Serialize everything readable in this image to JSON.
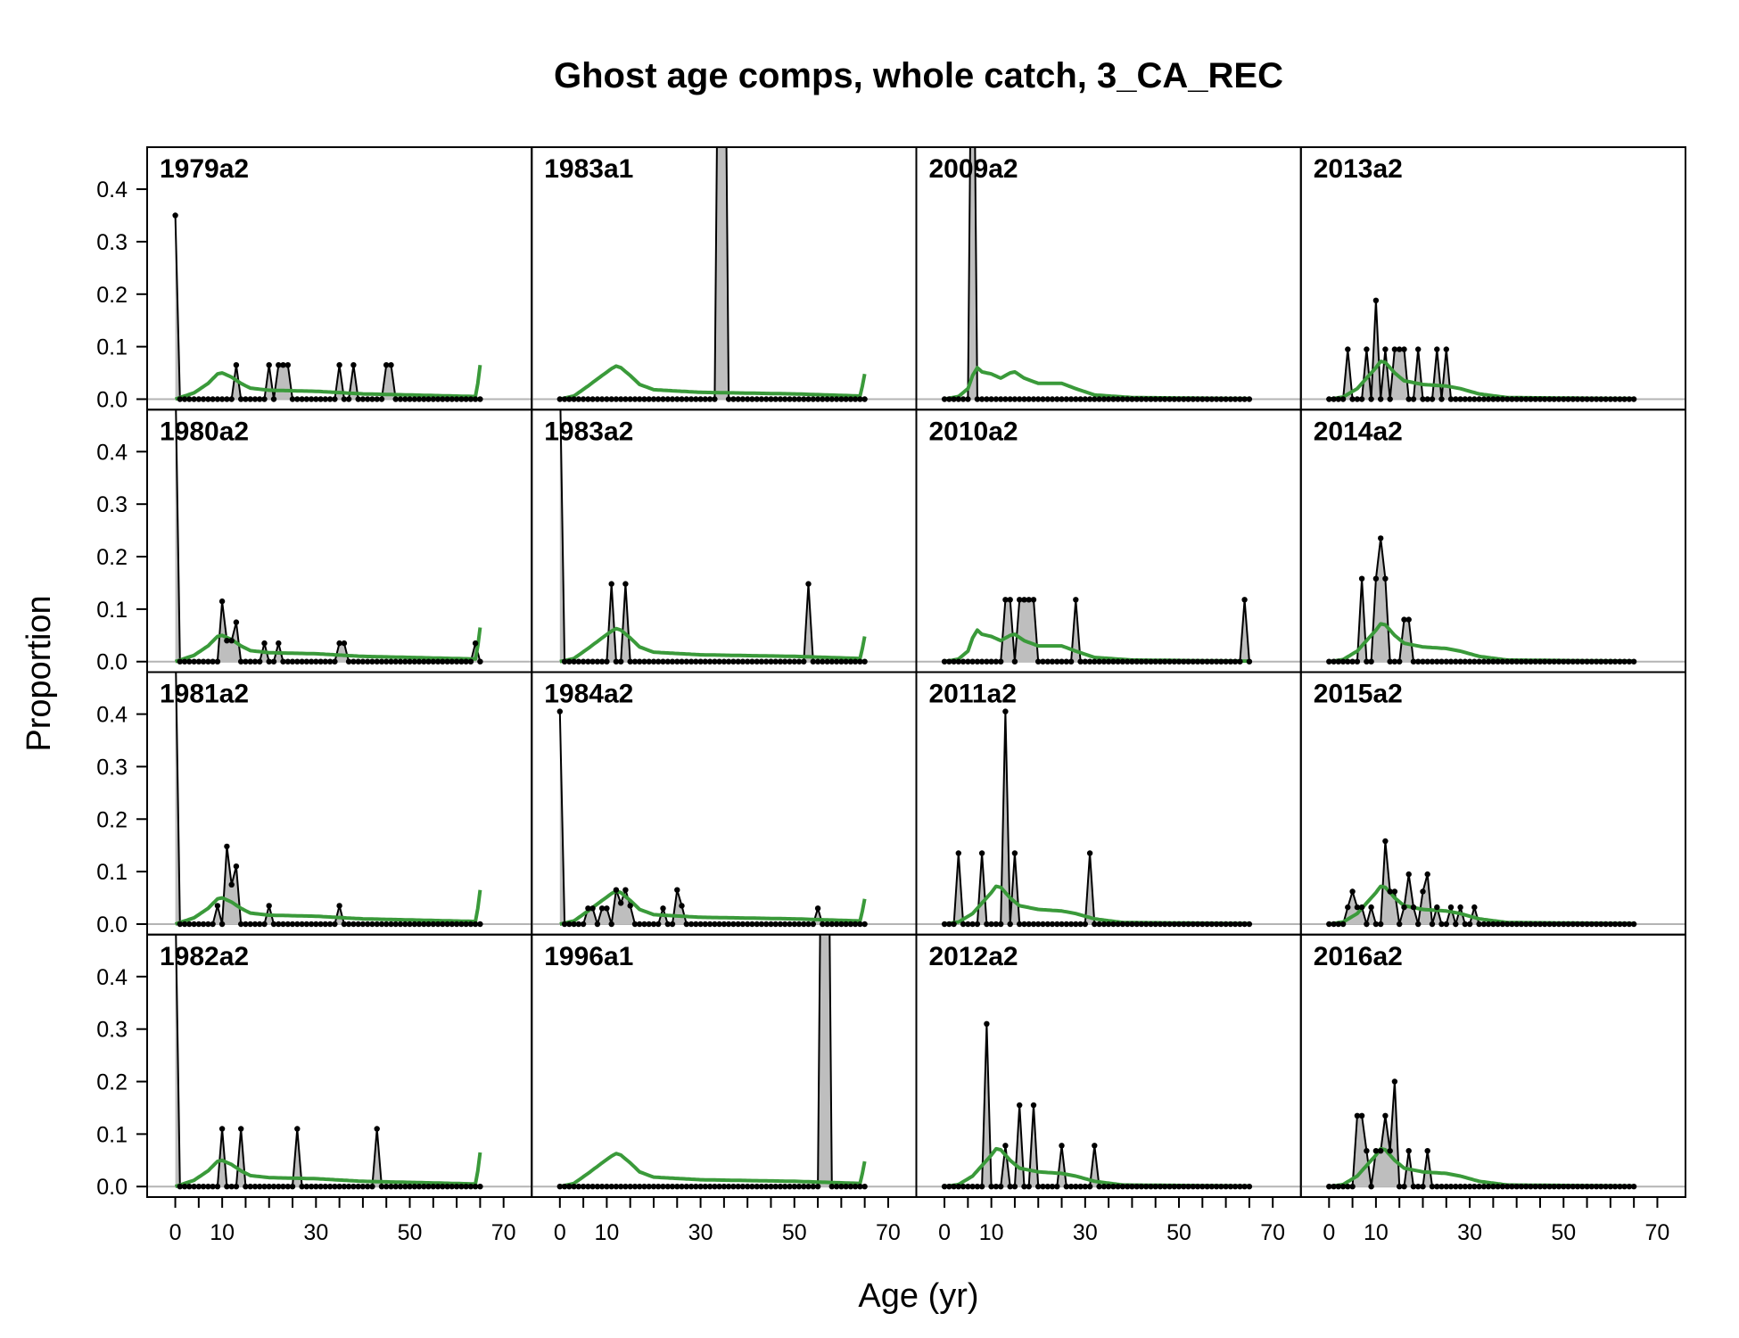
{
  "chart_data": {
    "type": "area",
    "title": "Ghost age comps, whole catch, 3_CA_REC",
    "xlabel": "Age (yr)",
    "ylabel": "Proportion",
    "xlim": [
      -6,
      76
    ],
    "ylim": [
      -0.02,
      0.48
    ],
    "xticks": [
      0,
      10,
      30,
      50,
      70
    ],
    "xticks_minor_step": 5,
    "yticks": [
      0.0,
      0.1,
      0.2,
      0.3,
      0.4
    ],
    "ytick_labels": [
      "0.0",
      "0.1",
      "0.2",
      "0.3",
      "0.4"
    ],
    "xtick_labels": [
      "0",
      "10",
      "30",
      "50",
      "70"
    ],
    "max_age": 65,
    "colors": {
      "observed_fill": "#bebebe",
      "observed_line": "#000000",
      "expected_line": "#3a9a3a",
      "zero_line": "#b4b4b4"
    },
    "layout": {
      "rows": 4,
      "cols": 4,
      "order": "column-major"
    },
    "expected_templates": {
      "A": [
        [
          0,
          0
        ],
        [
          4,
          0.012
        ],
        [
          7,
          0.03
        ],
        [
          9,
          0.048
        ],
        [
          10,
          0.05
        ],
        [
          12,
          0.042
        ],
        [
          14,
          0.03
        ],
        [
          16,
          0.021
        ],
        [
          20,
          0.017
        ],
        [
          30,
          0.015
        ],
        [
          40,
          0.01
        ],
        [
          50,
          0.008
        ],
        [
          64,
          0.005
        ],
        [
          64.5,
          0.03
        ],
        [
          65,
          0.065
        ]
      ],
      "B": [
        [
          0,
          0
        ],
        [
          3,
          0.006
        ],
        [
          6,
          0.025
        ],
        [
          9,
          0.045
        ],
        [
          11,
          0.058
        ],
        [
          12,
          0.063
        ],
        [
          13,
          0.06
        ],
        [
          15,
          0.045
        ],
        [
          17,
          0.028
        ],
        [
          20,
          0.018
        ],
        [
          30,
          0.013
        ],
        [
          50,
          0.01
        ],
        [
          64,
          0.006
        ],
        [
          64.5,
          0.025
        ],
        [
          65,
          0.048
        ]
      ],
      "C": [
        [
          0,
          0
        ],
        [
          3,
          0.005
        ],
        [
          5,
          0.02
        ],
        [
          6,
          0.045
        ],
        [
          7,
          0.06
        ],
        [
          8,
          0.052
        ],
        [
          10,
          0.048
        ],
        [
          12,
          0.04
        ],
        [
          14,
          0.05
        ],
        [
          15,
          0.052
        ],
        [
          17,
          0.04
        ],
        [
          20,
          0.03
        ],
        [
          25,
          0.03
        ],
        [
          28,
          0.02
        ],
        [
          32,
          0.008
        ],
        [
          40,
          0.003
        ],
        [
          65,
          0.001
        ]
      ],
      "D": [
        [
          0,
          0
        ],
        [
          3,
          0.004
        ],
        [
          6,
          0.02
        ],
        [
          8,
          0.04
        ],
        [
          10,
          0.06
        ],
        [
          11,
          0.072
        ],
        [
          12,
          0.07
        ],
        [
          14,
          0.05
        ],
        [
          16,
          0.035
        ],
        [
          20,
          0.028
        ],
        [
          25,
          0.025
        ],
        [
          28,
          0.02
        ],
        [
          32,
          0.01
        ],
        [
          38,
          0.003
        ],
        [
          65,
          0.001
        ]
      ]
    },
    "panels": [
      {
        "label": "1979a2",
        "expected": "A",
        "obs": [
          [
            0,
            0.35
          ],
          [
            13,
            0.065
          ],
          [
            20,
            0.065
          ],
          [
            22,
            0.065
          ],
          [
            23,
            0.065
          ],
          [
            24,
            0.065
          ],
          [
            35,
            0.065
          ],
          [
            38,
            0.065
          ],
          [
            45,
            0.065
          ],
          [
            46,
            0.065
          ]
        ]
      },
      {
        "label": "1980a2",
        "expected": "A",
        "obs": [
          [
            0,
            0.55
          ],
          [
            10,
            0.115
          ],
          [
            11,
            0.04
          ],
          [
            12,
            0.04
          ],
          [
            13,
            0.075
          ],
          [
            19,
            0.035
          ],
          [
            22,
            0.035
          ],
          [
            35,
            0.035
          ],
          [
            36,
            0.035
          ],
          [
            64,
            0.035
          ]
        ]
      },
      {
        "label": "1981a2",
        "expected": "A",
        "obs": [
          [
            0,
            0.55
          ],
          [
            9,
            0.035
          ],
          [
            11,
            0.148
          ],
          [
            12,
            0.075
          ],
          [
            13,
            0.11
          ],
          [
            20,
            0.035
          ],
          [
            35,
            0.035
          ]
        ]
      },
      {
        "label": "1982a2",
        "expected": "A",
        "obs": [
          [
            0,
            0.55
          ],
          [
            10,
            0.11
          ],
          [
            14,
            0.11
          ],
          [
            26,
            0.11
          ],
          [
            43,
            0.11
          ]
        ]
      },
      {
        "label": "1983a1",
        "expected": "B",
        "obs": [
          [
            34,
            1.0
          ],
          [
            35,
            1.0
          ]
        ]
      },
      {
        "label": "1983a2",
        "expected": "B",
        "obs": [
          [
            0,
            0.55
          ],
          [
            11,
            0.148
          ],
          [
            14,
            0.148
          ],
          [
            53,
            0.148
          ]
        ]
      },
      {
        "label": "1984a2",
        "expected": "B",
        "obs": [
          [
            0,
            0.405
          ],
          [
            6,
            0.03
          ],
          [
            7,
            0.03
          ],
          [
            9,
            0.03
          ],
          [
            10,
            0.03
          ],
          [
            12,
            0.065
          ],
          [
            13,
            0.04
          ],
          [
            14,
            0.065
          ],
          [
            15,
            0.035
          ],
          [
            22,
            0.03
          ],
          [
            25,
            0.065
          ],
          [
            26,
            0.035
          ],
          [
            55,
            0.03
          ]
        ]
      },
      {
        "label": "1996a1",
        "expected": "B",
        "obs": [
          [
            56,
            1.0
          ],
          [
            57,
            1.0
          ]
        ]
      },
      {
        "label": "2009a2",
        "expected": "C",
        "obs": [
          [
            6,
            1.0
          ]
        ]
      },
      {
        "label": "2010a2",
        "expected": "C",
        "obs": [
          [
            13,
            0.118
          ],
          [
            14,
            0.118
          ],
          [
            16,
            0.118
          ],
          [
            17,
            0.118
          ],
          [
            18,
            0.118
          ],
          [
            19,
            0.118
          ],
          [
            28,
            0.118
          ],
          [
            64,
            0.118
          ]
        ]
      },
      {
        "label": "2011a2",
        "expected": "D",
        "obs": [
          [
            3,
            0.135
          ],
          [
            8,
            0.135
          ],
          [
            13,
            0.405
          ],
          [
            15,
            0.135
          ],
          [
            31,
            0.135
          ]
        ]
      },
      {
        "label": "2012a2",
        "expected": "D",
        "obs": [
          [
            9,
            0.31
          ],
          [
            13,
            0.078
          ],
          [
            16,
            0.155
          ],
          [
            19,
            0.155
          ],
          [
            25,
            0.078
          ],
          [
            32,
            0.078
          ]
        ]
      },
      {
        "label": "2013a2",
        "expected": "D",
        "obs": [
          [
            4,
            0.095
          ],
          [
            8,
            0.095
          ],
          [
            10,
            0.188
          ],
          [
            12,
            0.095
          ],
          [
            14,
            0.095
          ],
          [
            15,
            0.095
          ],
          [
            16,
            0.095
          ],
          [
            19,
            0.095
          ],
          [
            23,
            0.095
          ],
          [
            25,
            0.095
          ]
        ]
      },
      {
        "label": "2014a2",
        "expected": "D",
        "obs": [
          [
            7,
            0.158
          ],
          [
            10,
            0.158
          ],
          [
            11,
            0.235
          ],
          [
            12,
            0.158
          ],
          [
            16,
            0.08
          ],
          [
            17,
            0.08
          ]
        ]
      },
      {
        "label": "2015a2",
        "expected": "D",
        "obs": [
          [
            4,
            0.032
          ],
          [
            5,
            0.062
          ],
          [
            6,
            0.032
          ],
          [
            7,
            0.032
          ],
          [
            9,
            0.032
          ],
          [
            12,
            0.158
          ],
          [
            13,
            0.062
          ],
          [
            14,
            0.062
          ],
          [
            16,
            0.032
          ],
          [
            17,
            0.095
          ],
          [
            18,
            0.032
          ],
          [
            20,
            0.062
          ],
          [
            21,
            0.095
          ],
          [
            23,
            0.032
          ],
          [
            26,
            0.032
          ],
          [
            28,
            0.032
          ],
          [
            31,
            0.032
          ]
        ]
      },
      {
        "label": "2016a2",
        "expected": "D",
        "obs": [
          [
            6,
            0.135
          ],
          [
            7,
            0.135
          ],
          [
            8,
            0.068
          ],
          [
            10,
            0.068
          ],
          [
            11,
            0.068
          ],
          [
            12,
            0.135
          ],
          [
            13,
            0.068
          ],
          [
            14,
            0.2
          ],
          [
            17,
            0.068
          ],
          [
            21,
            0.068
          ]
        ]
      }
    ]
  }
}
